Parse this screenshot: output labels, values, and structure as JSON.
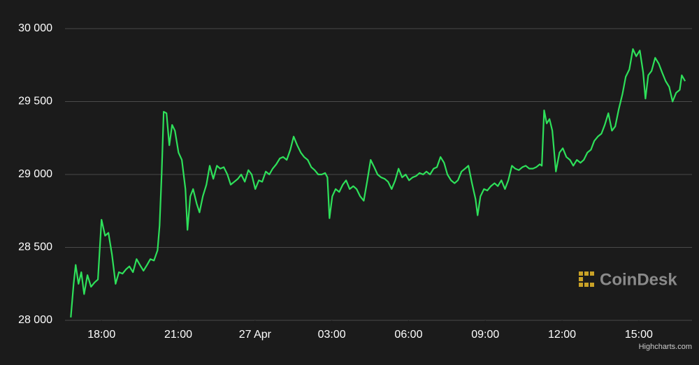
{
  "chart_data": {
    "type": "line",
    "watermark": "CoinDesk",
    "credits": "Highcharts.com",
    "xlim": [
      16.3,
      41.08
    ],
    "ylim": [
      28000,
      30000
    ],
    "xticks": [
      {
        "value": 18,
        "label": "18:00"
      },
      {
        "value": 21,
        "label": "21:00"
      },
      {
        "value": 24,
        "label": "27 Apr"
      },
      {
        "value": 27,
        "label": "03:00"
      },
      {
        "value": 30,
        "label": "06:00"
      },
      {
        "value": 33,
        "label": "09:00"
      },
      {
        "value": 36,
        "label": "12:00"
      },
      {
        "value": 39,
        "label": "15:00"
      }
    ],
    "yticks": [
      {
        "value": 28000,
        "label": "28 000"
      },
      {
        "value": 28500,
        "label": "28 500"
      },
      {
        "value": 29000,
        "label": "29 000"
      },
      {
        "value": 29500,
        "label": "29 500"
      },
      {
        "value": 30000,
        "label": "30 000"
      }
    ],
    "grid": true,
    "x": [
      16.8,
      16.91,
      16.99,
      17.1,
      17.21,
      17.32,
      17.45,
      17.59,
      17.73,
      17.86,
      18.0,
      18.14,
      18.27,
      18.41,
      18.55,
      18.68,
      18.82,
      18.96,
      19.09,
      19.23,
      19.37,
      19.5,
      19.64,
      19.78,
      19.91,
      20.05,
      20.19,
      20.27,
      20.35,
      20.43,
      20.54,
      20.65,
      20.76,
      20.87,
      21.01,
      21.14,
      21.28,
      21.36,
      21.47,
      21.58,
      21.72,
      21.83,
      21.96,
      22.1,
      22.23,
      22.37,
      22.51,
      22.64,
      22.78,
      22.92,
      23.05,
      23.19,
      23.33,
      23.46,
      23.6,
      23.74,
      23.87,
      24.01,
      24.15,
      24.28,
      24.42,
      24.56,
      24.69,
      24.83,
      24.97,
      25.1,
      25.24,
      25.38,
      25.51,
      25.65,
      25.79,
      25.92,
      26.06,
      26.2,
      26.33,
      26.47,
      26.61,
      26.74,
      26.83,
      26.91,
      27.02,
      27.15,
      27.29,
      27.43,
      27.56,
      27.7,
      27.84,
      27.97,
      28.11,
      28.25,
      28.38,
      28.52,
      28.66,
      28.79,
      28.93,
      29.07,
      29.2,
      29.34,
      29.48,
      29.61,
      29.75,
      29.89,
      30.02,
      30.16,
      30.3,
      30.43,
      30.57,
      30.7,
      30.84,
      30.98,
      31.11,
      31.25,
      31.39,
      31.52,
      31.66,
      31.8,
      31.93,
      32.07,
      32.21,
      32.34,
      32.48,
      32.62,
      32.7,
      32.81,
      32.95,
      33.08,
      33.22,
      33.36,
      33.49,
      33.63,
      33.77,
      33.9,
      34.04,
      34.17,
      34.31,
      34.45,
      34.58,
      34.72,
      34.86,
      34.99,
      35.13,
      35.21,
      35.3,
      35.4,
      35.51,
      35.62,
      35.76,
      35.9,
      36.03,
      36.17,
      36.31,
      36.44,
      36.58,
      36.72,
      36.85,
      36.99,
      37.13,
      37.26,
      37.4,
      37.54,
      37.67,
      37.81,
      37.95,
      38.08,
      38.22,
      38.36,
      38.49,
      38.63,
      38.77,
      38.9,
      39.04,
      39.17,
      39.26,
      39.37,
      39.5,
      39.64,
      39.78,
      39.91,
      40.05,
      40.19,
      40.32,
      40.46,
      40.6,
      40.68,
      40.81
    ],
    "series": [
      {
        "color": "#2ee05a",
        "values": [
          28020,
          28250,
          28380,
          28250,
          28330,
          28180,
          28310,
          28230,
          28260,
          28280,
          28690,
          28580,
          28600,
          28450,
          28250,
          28330,
          28320,
          28350,
          28370,
          28330,
          28420,
          28380,
          28340,
          28380,
          28420,
          28410,
          28480,
          28650,
          29000,
          29430,
          29420,
          29200,
          29340,
          29300,
          29150,
          29100,
          28900,
          28620,
          28850,
          28900,
          28800,
          28740,
          28850,
          28930,
          29060,
          28970,
          29060,
          29040,
          29050,
          29000,
          28930,
          28950,
          28970,
          29000,
          28950,
          29030,
          29000,
          28900,
          28960,
          28950,
          29020,
          29000,
          29040,
          29070,
          29110,
          29120,
          29100,
          29170,
          29260,
          29200,
          29150,
          29120,
          29100,
          29050,
          29030,
          29000,
          29000,
          29010,
          28980,
          28700,
          28850,
          28900,
          28880,
          28930,
          28960,
          28900,
          28920,
          28900,
          28850,
          28820,
          28950,
          29100,
          29050,
          29000,
          28980,
          28970,
          28950,
          28900,
          28960,
          29040,
          28980,
          29000,
          28960,
          28980,
          28990,
          29010,
          29000,
          29020,
          29000,
          29040,
          29050,
          29120,
          29080,
          29000,
          28960,
          28940,
          28960,
          29020,
          29040,
          29060,
          28940,
          28830,
          28720,
          28850,
          28900,
          28890,
          28920,
          28940,
          28920,
          28960,
          28900,
          28960,
          29060,
          29040,
          29030,
          29050,
          29060,
          29040,
          29040,
          29050,
          29070,
          29060,
          29440,
          29350,
          29380,
          29300,
          29020,
          29150,
          29180,
          29120,
          29100,
          29060,
          29100,
          29080,
          29100,
          29150,
          29170,
          29230,
          29260,
          29280,
          29340,
          29420,
          29300,
          29330,
          29450,
          29550,
          29670,
          29720,
          29860,
          29810,
          29850,
          29700,
          29520,
          29680,
          29710,
          29800,
          29760,
          29700,
          29640,
          29600,
          29500,
          29560,
          29580,
          29680,
          29640
        ]
      }
    ]
  }
}
